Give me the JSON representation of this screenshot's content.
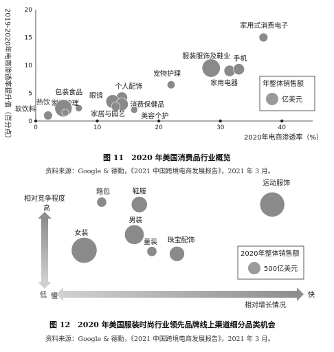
{
  "charts": [
    {
      "type": "scatter",
      "ylabel": "2019-2020年电商渗透率提升值（百分点）",
      "xlabel": "2020年电商渗透率（%）",
      "xlim": [
        0,
        45
      ],
      "ylim": [
        0,
        20
      ],
      "xticks": [
        0,
        10,
        20,
        30,
        40
      ],
      "yticks": [
        0,
        5,
        10,
        15,
        20
      ],
      "legend": {
        "title": "年整体销售额",
        "label": "亿美元",
        "placement": "right"
      },
      "points": [
        {
          "name": "家用式消费电子",
          "x": 37,
          "y": 15,
          "size": 1
        },
        {
          "name": "服装服饰及鞋业",
          "x": 28.5,
          "y": 9.5,
          "size": 3
        },
        {
          "name": "家用电器",
          "x": 31.5,
          "y": 9,
          "size": 1.5
        },
        {
          "name": "手机",
          "x": 33,
          "y": 9.3,
          "size": 1.5
        },
        {
          "name": "宠物护理",
          "x": 22,
          "y": 6.5,
          "size": 0.8
        },
        {
          "name": "个人配饰",
          "x": 14,
          "y": 4.2,
          "size": 1.5
        },
        {
          "name": "眼镜",
          "x": 12.5,
          "y": 3.5,
          "size": 2
        },
        {
          "name": "消费保健品",
          "x": 14,
          "y": 3,
          "size": 1.8
        },
        {
          "name": "美容个护",
          "x": 16,
          "y": 2,
          "size": 0.6
        },
        {
          "name": "家居与园艺",
          "x": 13,
          "y": 2.6,
          "size": 1
        },
        {
          "name": "家庭护理",
          "x": 7,
          "y": 2.3,
          "size": 0.6
        },
        {
          "name": "包装食品",
          "x": 4.5,
          "y": 2.3,
          "size": 2.8
        },
        {
          "name": "热饮",
          "x": 4.8,
          "y": 1.5,
          "size": 0.6
        },
        {
          "name": "软饮料",
          "x": 2,
          "y": 1,
          "size": 1
        }
      ],
      "caption": "图 11　2020 年美国消费品行业概览",
      "source": "资料来源：Google & 德勤，《2021 中国跨境电商发展报告》，2021 年 3 月。"
    },
    {
      "type": "scatter",
      "ylabel": "相对竞争程度",
      "xlabel": "相对增长情况",
      "y_high": "高",
      "y_low": "低",
      "x_low": "慢",
      "x_high": "快",
      "legend": {
        "title": "2020年整体销售额",
        "label": "500亿美元",
        "placement": "right"
      },
      "points": [
        {
          "name": "箱包",
          "x": 2,
          "y": 7.2,
          "size": 0.6
        },
        {
          "name": "鞋履",
          "x": 3.5,
          "y": 7,
          "size": 1.3
        },
        {
          "name": "运动服饰",
          "x": 8.8,
          "y": 7,
          "size": 2.3
        },
        {
          "name": "男装",
          "x": 3.3,
          "y": 4.5,
          "size": 1.7
        },
        {
          "name": "女装",
          "x": 1.3,
          "y": 3.2,
          "size": 2.4
        },
        {
          "name": "童装",
          "x": 4,
          "y": 3.1,
          "size": 0.6
        },
        {
          "name": "珠宝配饰",
          "x": 5,
          "y": 2.9,
          "size": 1.2
        }
      ],
      "caption": "图 12　2020 年美国服装时尚行业领先品牌线上渠道细分品类机会",
      "source": "资料来源：Google & 德勤，《2021 中国跨境电商发展报告》，2021 年 3 月。"
    }
  ]
}
